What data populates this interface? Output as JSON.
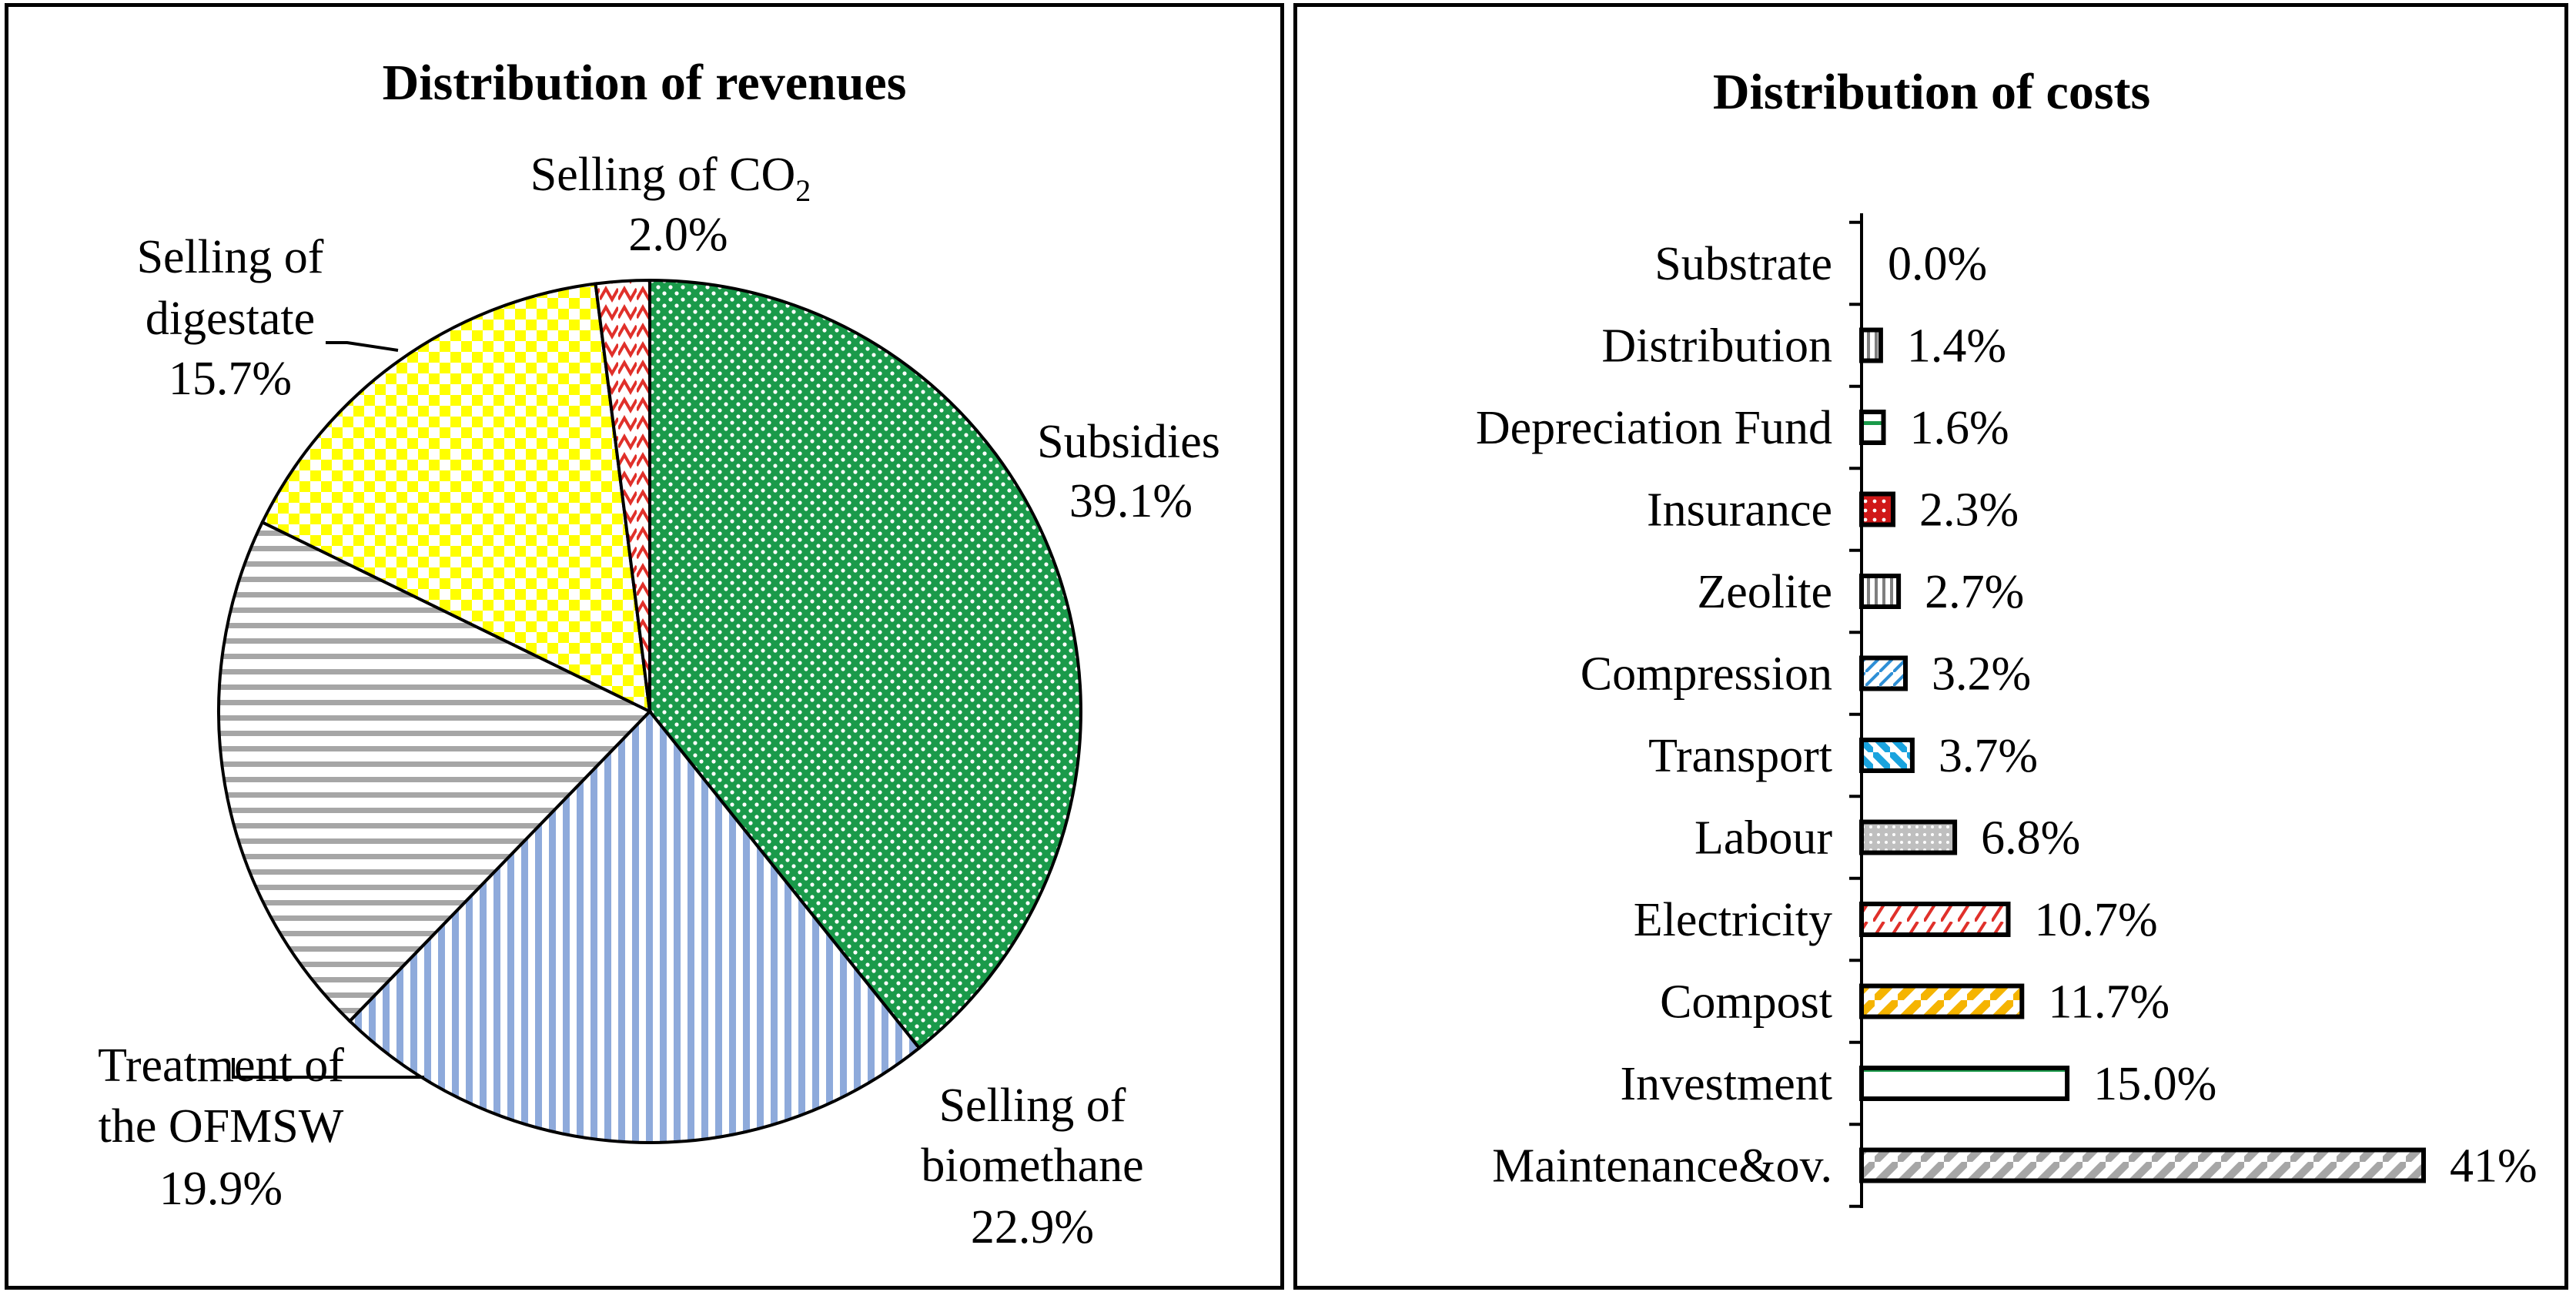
{
  "chart_data": [
    {
      "type": "pie",
      "title": "Distribution of revenues",
      "slices": [
        {
          "label": "Subsidies",
          "value": 39.1,
          "value_label": "39.1%",
          "pattern": "green-dots",
          "color": "#1a9a4a"
        },
        {
          "label": "Selling of biomethane",
          "value": 22.9,
          "value_label": "22.9%",
          "pattern": "blue-vertical",
          "color": "#8eaadb"
        },
        {
          "label": "Treatment of the OFMSW",
          "value": 19.9,
          "value_label": "19.9%",
          "pattern": "gray-horizontal",
          "color": "#a6a6a6"
        },
        {
          "label": "Selling of digestate",
          "value": 15.7,
          "value_label": "15.7%",
          "pattern": "yellow-check",
          "color": "#ffff00"
        },
        {
          "label": "Selling of CO2",
          "value": 2.0,
          "value_label": "2.0%",
          "pattern": "red-zigzag",
          "color": "#e0302a"
        }
      ],
      "label_text": {
        "subsidies": [
          "Subsidies",
          "39.1%"
        ],
        "biomethane": [
          "Selling of",
          "biomethane",
          "22.9%"
        ],
        "ofmsw": [
          "Treatment of",
          "the OFMSW",
          "19.9%"
        ],
        "digestate": [
          "Selling of",
          "digestate",
          "15.7%"
        ],
        "co2": [
          "Selling of CO",
          "2",
          "2.0%"
        ]
      }
    },
    {
      "type": "bar",
      "orientation": "horizontal",
      "title": "Distribution of costs",
      "categories": [
        "Substrate",
        "Distribution",
        "Depreciation Fund",
        "Insurance",
        "Zeolite",
        "Compression",
        "Transport",
        "Labour",
        "Electricity",
        "Compost",
        "Investment",
        "Maintenance&ov."
      ],
      "values": [
        0.0,
        1.4,
        1.6,
        2.3,
        2.7,
        3.2,
        3.7,
        6.8,
        10.7,
        11.7,
        15.0,
        41
      ],
      "value_labels": [
        "0.0%",
        "1.4%",
        "1.6%",
        "2.3%",
        "2.7%",
        "3.2%",
        "3.7%",
        "6.8%",
        "10.7%",
        "11.7%",
        "15.0%",
        "41%"
      ],
      "patterns": [
        "none",
        "gray-vertical",
        "green-horizontal",
        "red-dots",
        "gray-vertical",
        "blue-diagonal",
        "blue-diagonal-bold",
        "gray-dots",
        "red-zigzag",
        "orange-diagonal",
        "green-horizontal",
        "gray-diagonal"
      ],
      "xlim": [
        0,
        41
      ]
    }
  ]
}
